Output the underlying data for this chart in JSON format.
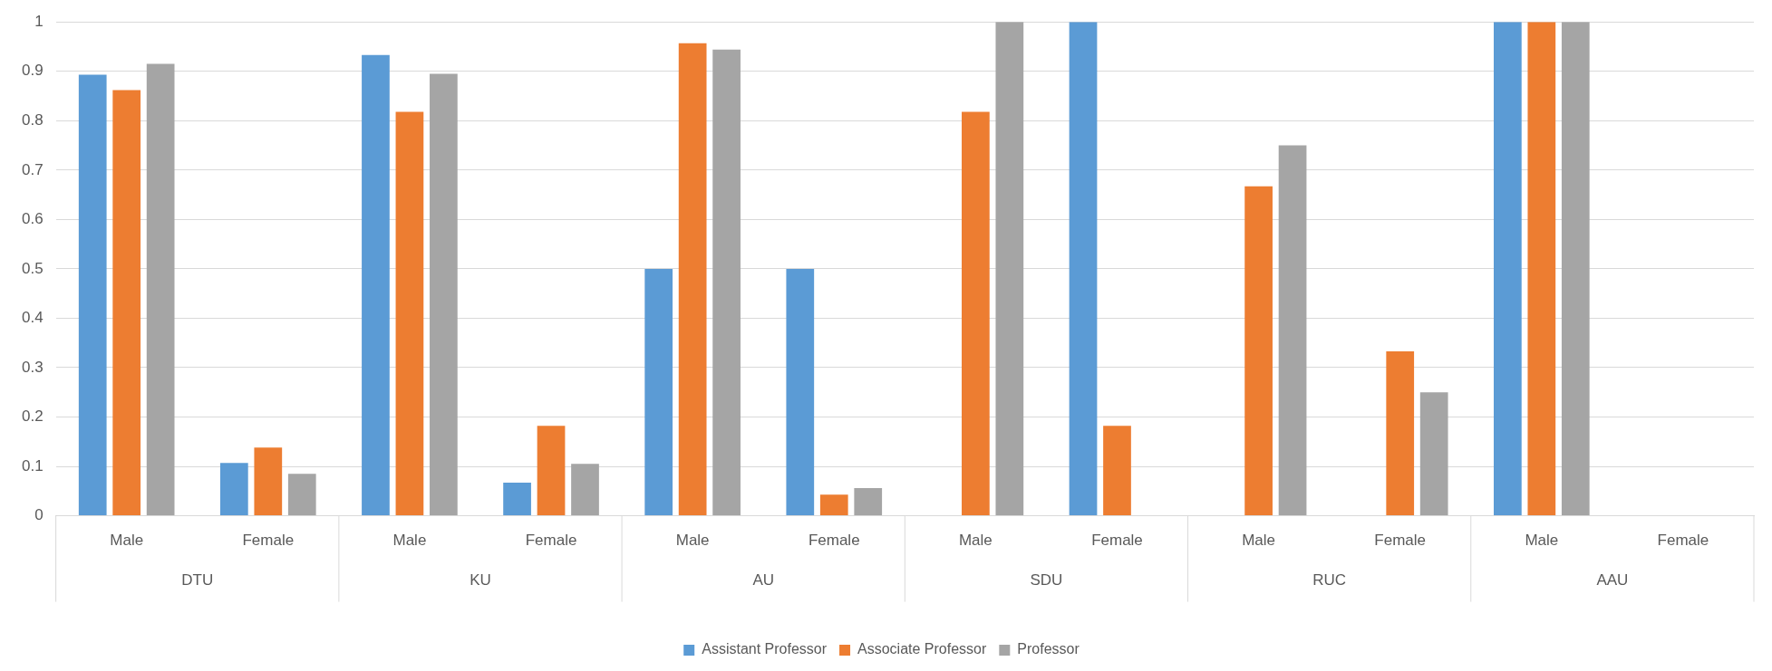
{
  "chart_data": {
    "type": "bar",
    "categories": [
      "Male",
      "Female",
      "Male",
      "Female",
      "Male",
      "Female",
      "Male",
      "Female",
      "Male",
      "Female",
      "Male",
      "Female"
    ],
    "annotations": [
      "DTU",
      "KU",
      "AU",
      "SDU",
      "RUC",
      "AAU"
    ],
    "series": [
      {
        "name": "Assistant Professor",
        "color": "#5b9bd5",
        "values": [
          0.893,
          0.107,
          0.933,
          0.067,
          0.5,
          0.5,
          null,
          1,
          null,
          null,
          1,
          null
        ]
      },
      {
        "name": "Associate Professor",
        "color": "#ed7d31",
        "values": [
          0.862,
          0.138,
          0.818,
          0.182,
          0.957,
          0.043,
          0.818,
          0.182,
          0.667,
          0.333,
          1,
          null
        ]
      },
      {
        "name": "Professor",
        "color": "#a5a5a5",
        "values": [
          0.915,
          0.085,
          0.895,
          0.105,
          0.944,
          0.056,
          1,
          null,
          0.75,
          0.25,
          1,
          null
        ]
      }
    ],
    "ylim": [
      0,
      1
    ],
    "yticks": [
      0,
      0.1,
      0.2,
      0.3,
      0.4,
      0.5,
      0.6,
      0.7,
      0.8,
      0.9,
      1
    ],
    "grid": "y",
    "legend": "bottom"
  }
}
